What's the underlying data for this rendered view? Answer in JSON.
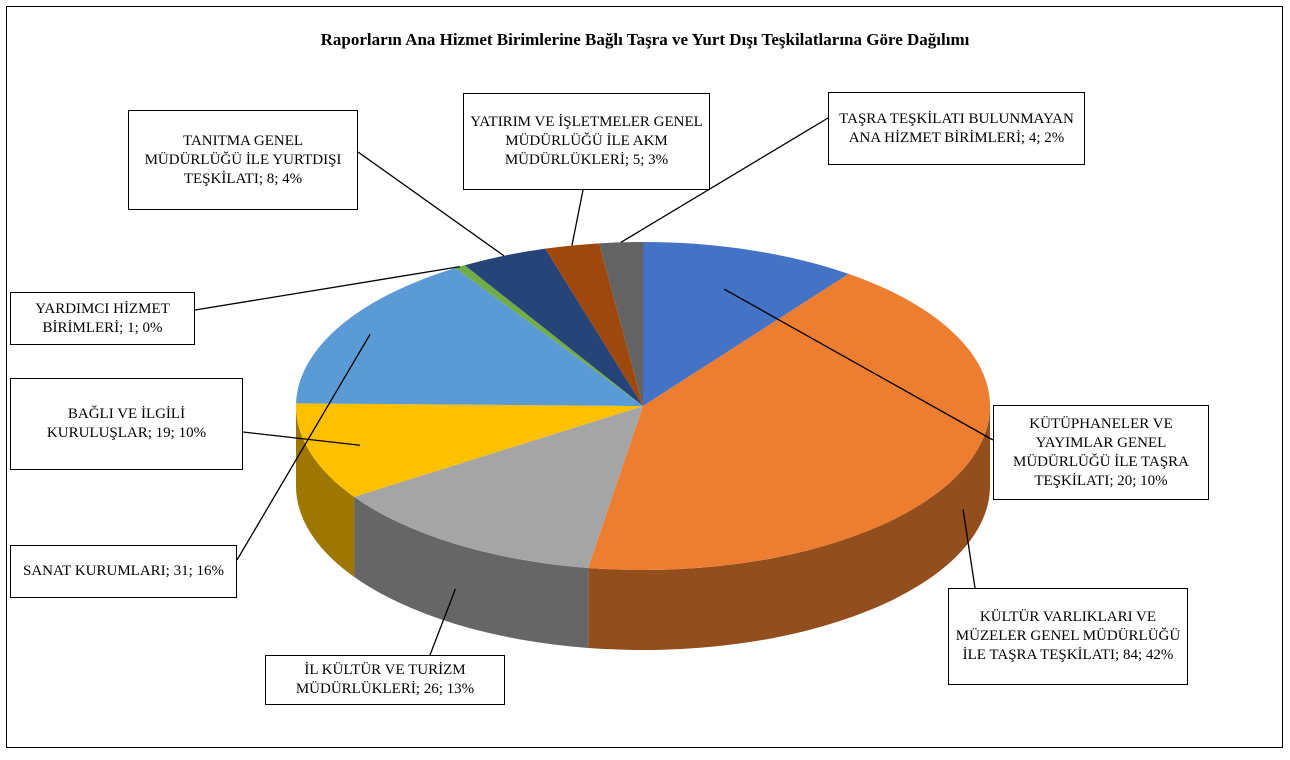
{
  "chart_data": {
    "type": "pie3d",
    "title": "Raporların Ana Hizmet Birimlerine Bağlı Taşra ve Yurt Dışı Teşkilatlarına Göre Dağılımı",
    "labels": [
      "KÜTÜPHANELER VE YAYIMLAR GENEL MÜDÜRLÜĞÜ İLE TAŞRA TEŞKİLATI; 20; 10%",
      "KÜLTÜR VARLIKLARI VE MÜZELER GENEL MÜDÜRLÜĞÜ İLE TAŞRA TEŞKİLATI; 84; 42%",
      "İL KÜLTÜR VE TURİZM MÜDÜRLÜKLERİ; 26; 13%",
      "BAĞLI VE İLGİLİ KURULUŞLAR; 19; 10%",
      "SANAT KURUMLARI; 31; 16%",
      "YARDIMCI HİZMET BİRİMLERİ; 1; 0%",
      "TANITMA GENEL MÜDÜRLÜĞÜ İLE YURTDIŞI TEŞKİLATI; 8; 4%",
      "YATIRIM VE İŞLETMELER GENEL MÜDÜRLÜĞÜ İLE AKM MÜDÜRLÜKLERİ; 5; 3%",
      "TAŞRA TEŞKİLATI BULUNMAYAN ANA HİZMET BİRİMLERİ; 4; 2%"
    ],
    "values": [
      20,
      84,
      26,
      19,
      31,
      1,
      8,
      5,
      4
    ],
    "colors": [
      "#4472c4",
      "#ed7d31",
      "#a5a5a5",
      "#ffc000",
      "#5b9bd5",
      "#70ad47",
      "#264478",
      "#9e480e",
      "#636363"
    ]
  }
}
